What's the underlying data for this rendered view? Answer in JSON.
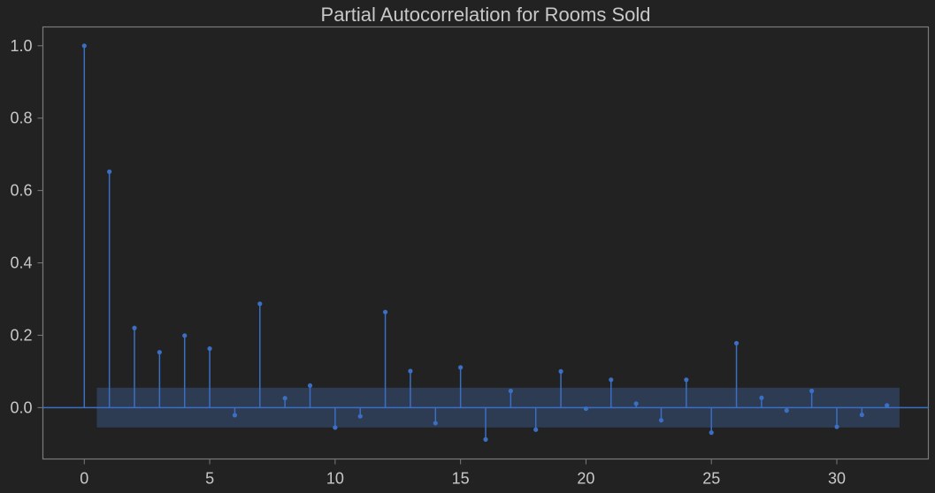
{
  "chart_data": {
    "type": "stem",
    "title": "Partial Autocorrelation for Rooms Sold",
    "xlabel": "",
    "ylabel": "",
    "xlim": [
      -1.65,
      33.65
    ],
    "ylim": [
      -0.142,
      1.052
    ],
    "x_ticks": [
      0,
      5,
      10,
      15,
      20,
      25,
      30
    ],
    "y_ticks": [
      0.0,
      0.2,
      0.4,
      0.6,
      0.8,
      1.0
    ],
    "x_tick_labels": [
      "0",
      "5",
      "10",
      "15",
      "20",
      "25",
      "30"
    ],
    "y_tick_labels": [
      "0.0",
      "0.2",
      "0.4",
      "0.6",
      "0.8",
      "1.0"
    ],
    "lags": [
      0,
      1,
      2,
      3,
      4,
      5,
      6,
      7,
      8,
      9,
      10,
      11,
      12,
      13,
      14,
      15,
      16,
      17,
      18,
      19,
      20,
      21,
      22,
      23,
      24,
      25,
      26,
      27,
      28,
      29,
      30,
      31,
      32
    ],
    "values": [
      1.0,
      0.652,
      0.22,
      0.153,
      0.199,
      0.163,
      -0.021,
      0.287,
      0.026,
      0.061,
      -0.055,
      -0.024,
      0.264,
      0.101,
      -0.043,
      0.111,
      -0.088,
      0.046,
      -0.061,
      0.1,
      -0.003,
      0.077,
      0.011,
      -0.035,
      0.077,
      -0.069,
      0.178,
      0.027,
      -0.008,
      0.046,
      -0.053,
      -0.02,
      0.006
    ],
    "confidence_interval": {
      "x_start": 0.5,
      "x_end": 32.5,
      "upper": 0.055,
      "lower": -0.055
    },
    "colors": {
      "background": "#222222",
      "stem": "#3a6fc4",
      "marker": "#3a6fc4",
      "zero_line": "#3a6fc4",
      "confidence_band": "#2f3f5c",
      "axes": "#7a7a7a",
      "text": "#c8c8c8"
    },
    "grid": false,
    "legend": "none"
  }
}
